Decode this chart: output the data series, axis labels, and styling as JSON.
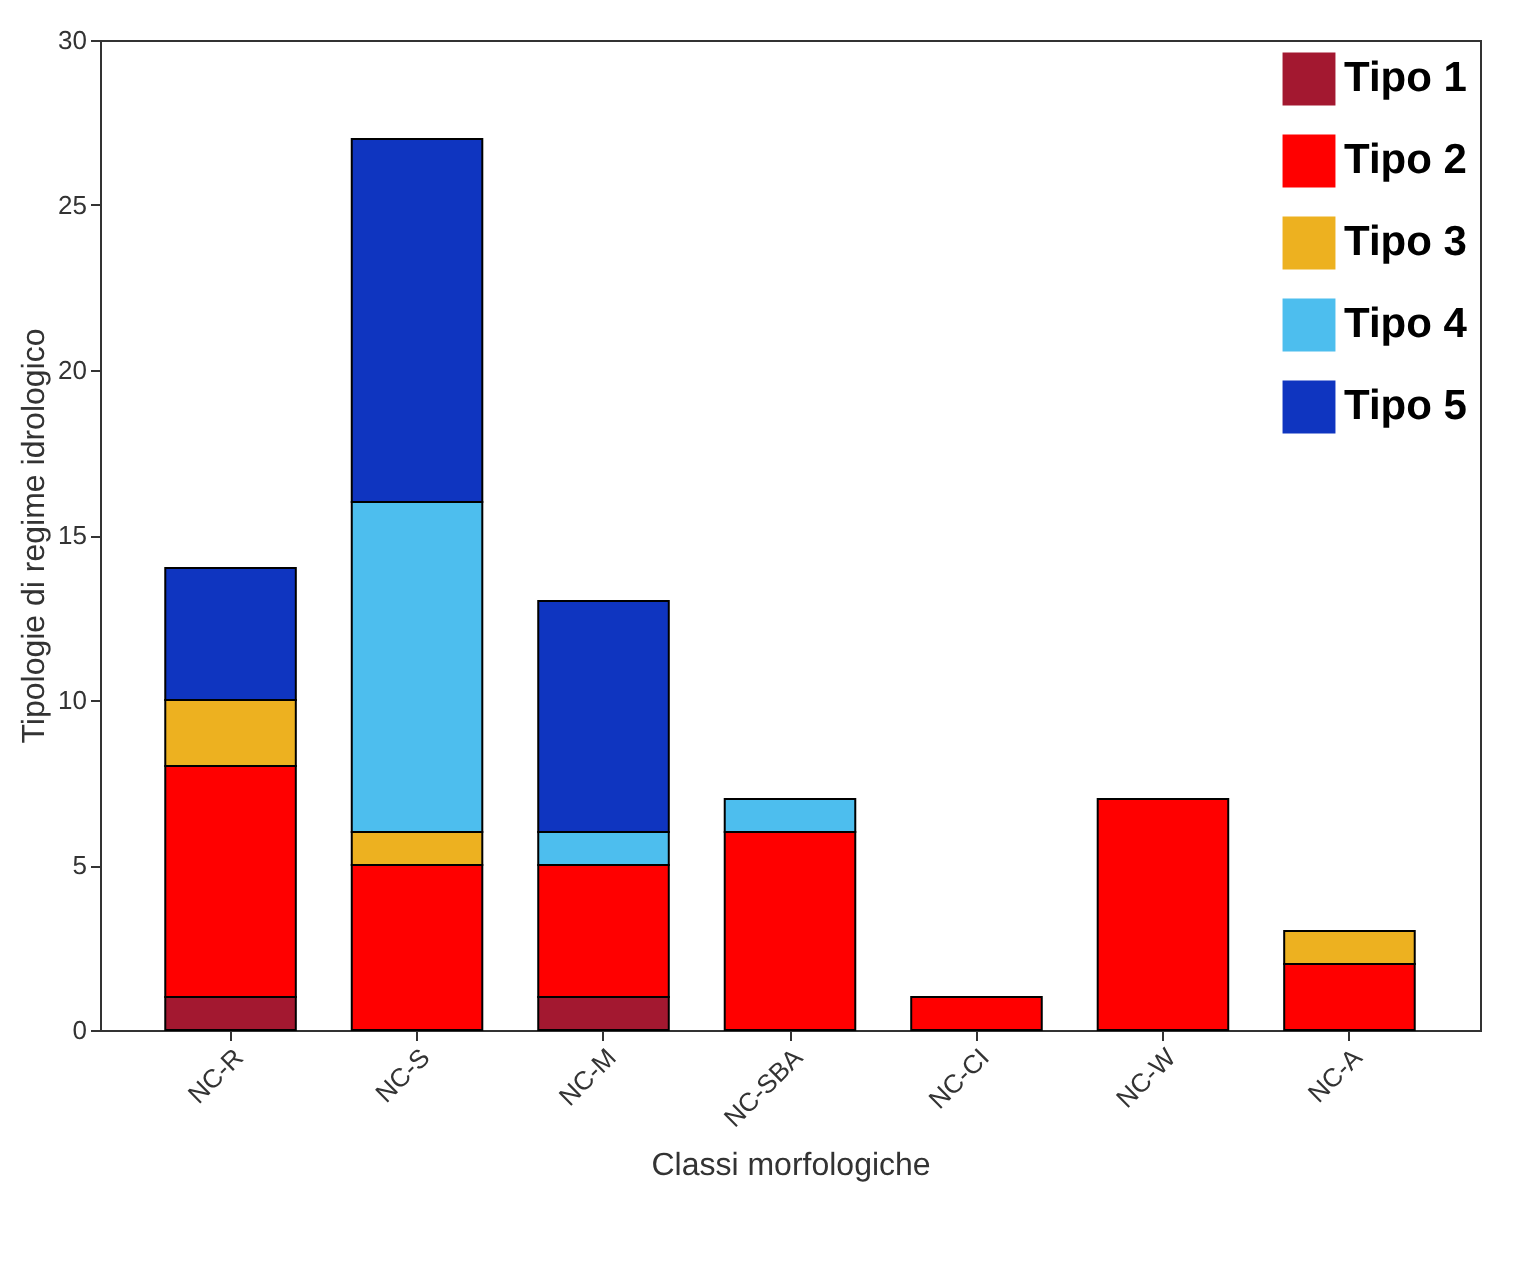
{
  "chart_data": {
    "type": "bar",
    "stacked": true,
    "xlabel": "Classi morfologiche",
    "ylabel": "Tipologie di regime idrologico",
    "categories": [
      "NC-R",
      "NC-S",
      "NC-M",
      "NC-SBA",
      "NC-CI",
      "NC-W",
      "NC-A"
    ],
    "series": [
      {
        "name": "Tipo 1",
        "color": "#a31830",
        "values": [
          1,
          0,
          1,
          0,
          0,
          0,
          0
        ]
      },
      {
        "name": "Tipo 2",
        "color": "#ff0000",
        "values": [
          7,
          5,
          4,
          6,
          1,
          7,
          2
        ]
      },
      {
        "name": "Tipo 3",
        "color": "#edb120",
        "values": [
          2,
          1,
          0,
          0,
          0,
          0,
          1
        ]
      },
      {
        "name": "Tipo 4",
        "color": "#4dbeee",
        "values": [
          0,
          10,
          1,
          1,
          0,
          0,
          0
        ]
      },
      {
        "name": "Tipo 5",
        "color": "#0f35c0",
        "values": [
          4,
          11,
          7,
          0,
          0,
          0,
          0
        ]
      }
    ],
    "ylim": [
      0,
      30
    ],
    "yticks": [
      0,
      5,
      10,
      15,
      20,
      25,
      30
    ],
    "grid": false,
    "legend": "top right"
  }
}
